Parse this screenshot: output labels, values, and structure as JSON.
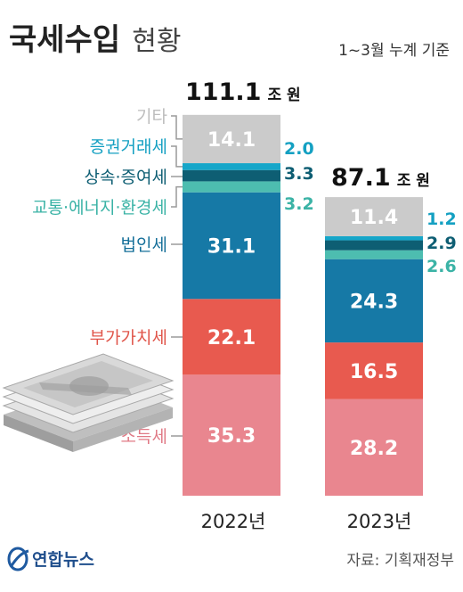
{
  "header": {
    "title_main": "국세수입",
    "title_sub": "현황",
    "note": "1~3월 누계 기준"
  },
  "footer": {
    "source": "자료: 기획재정부",
    "logo": "연합뉴스"
  },
  "icons": [
    "money-stack-icon",
    "yonhap-logo-icon"
  ],
  "colors": {
    "income": "#e9868f",
    "vat": "#e85a4f",
    "corporate": "#1679a6",
    "transport": "#4dbdb0",
    "inheritance": "#0e5e73",
    "securities": "#16a6c9",
    "other": "#cbcbcb"
  },
  "chart_data": {
    "type": "bar",
    "stacked": true,
    "unit": "조 원",
    "categories": [
      "2022년",
      "2023년"
    ],
    "totals": [
      "111.1",
      "87.1"
    ],
    "series": [
      {
        "name": "소득세",
        "values": [
          35.3,
          28.2
        ],
        "labels": [
          "35.3",
          "28.2"
        ],
        "color": "#e9868f"
      },
      {
        "name": "부가가치세",
        "values": [
          22.1,
          16.5
        ],
        "labels": [
          "22.1",
          "16.5"
        ],
        "color": "#e85a4f"
      },
      {
        "name": "법인세",
        "values": [
          31.1,
          24.3
        ],
        "labels": [
          "31.1",
          "24.3"
        ],
        "color": "#1679a6"
      },
      {
        "name": "교통·에너지·환경세",
        "values": [
          3.2,
          2.6
        ],
        "labels": [
          "3.2",
          "2.6"
        ],
        "color": "#4dbdb0"
      },
      {
        "name": "상속·증여세",
        "values": [
          3.3,
          2.9
        ],
        "labels": [
          "3.3",
          "2.9"
        ],
        "color": "#0e5e73"
      },
      {
        "name": "증권거래세",
        "values": [
          2.0,
          1.2
        ],
        "labels": [
          "2.0",
          "1.2"
        ],
        "color": "#16a6c9"
      },
      {
        "name": "기타",
        "values": [
          14.1,
          11.4
        ],
        "labels": [
          "14.1",
          "11.4"
        ],
        "color": "#cbcbcb"
      }
    ]
  }
}
